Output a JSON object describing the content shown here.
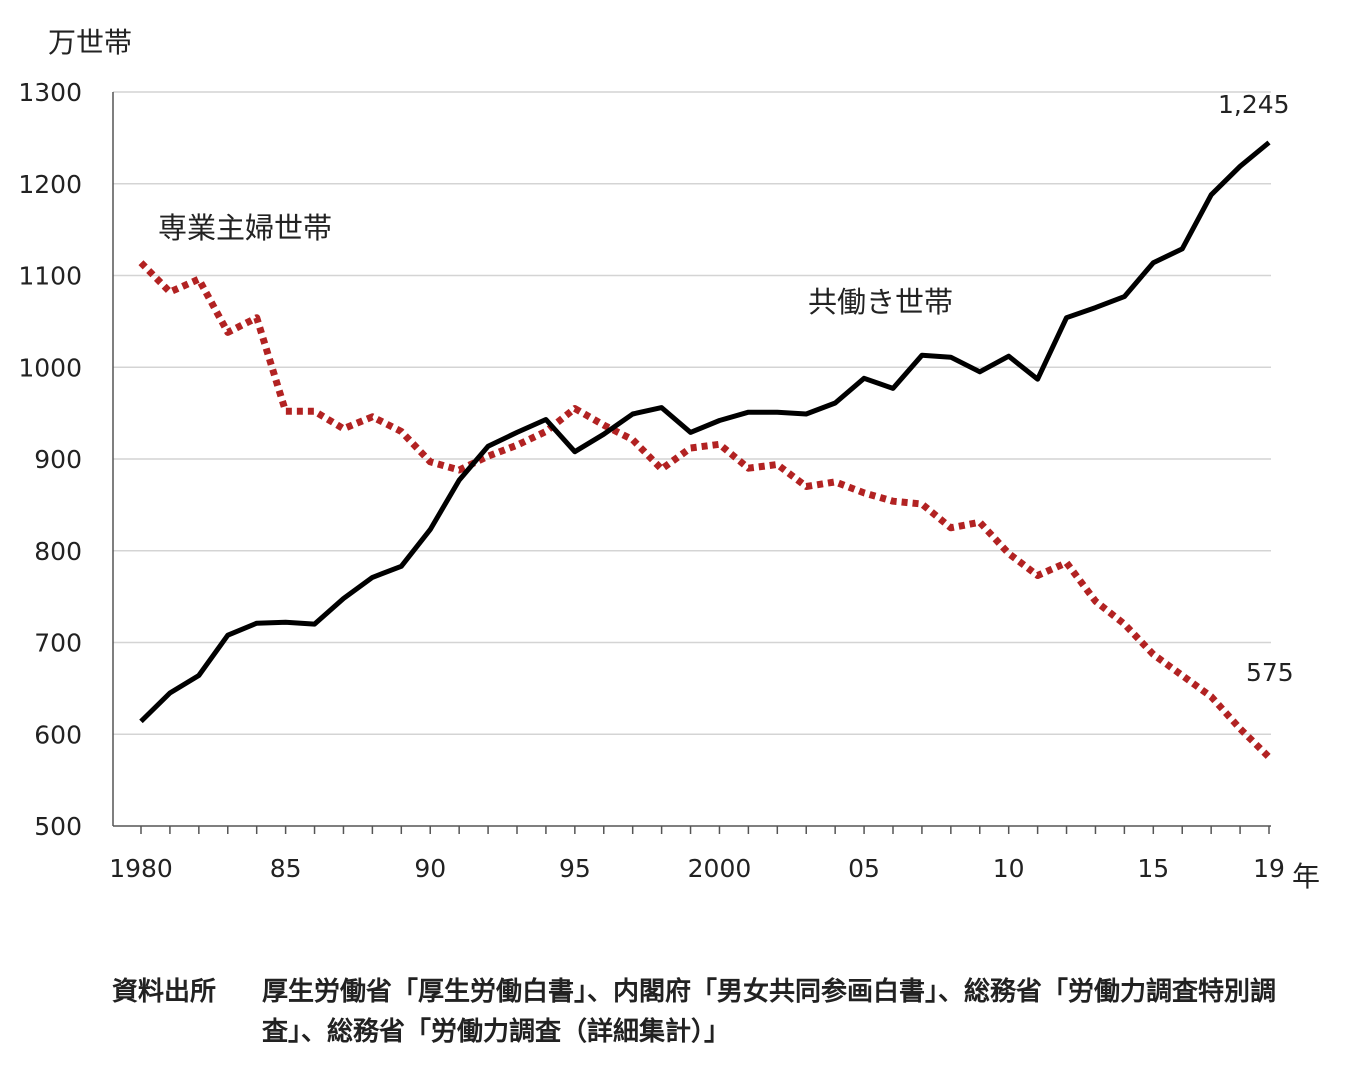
{
  "chart_data": {
    "type": "line",
    "y_unit": "万世帯",
    "x_unit": "年",
    "ylim": [
      500,
      1300
    ],
    "yticks": [
      500,
      600,
      700,
      800,
      900,
      1000,
      1100,
      1200,
      1300
    ],
    "xlim": [
      1980,
      2019
    ],
    "xtick_labels": [
      {
        "x": 1980,
        "label": "1980"
      },
      {
        "x": 1985,
        "label": "85"
      },
      {
        "x": 1990,
        "label": "90"
      },
      {
        "x": 1995,
        "label": "95"
      },
      {
        "x": 2000,
        "label": "2000"
      },
      {
        "x": 2005,
        "label": "05"
      },
      {
        "x": 2010,
        "label": "10"
      },
      {
        "x": 2015,
        "label": "15"
      },
      {
        "x": 2019,
        "label": "19"
      }
    ],
    "grid": true,
    "x": [
      1980,
      1981,
      1982,
      1983,
      1984,
      1985,
      1986,
      1987,
      1988,
      1989,
      1990,
      1991,
      1992,
      1993,
      1994,
      1995,
      1996,
      1997,
      1998,
      1999,
      2000,
      2001,
      2002,
      2003,
      2004,
      2005,
      2006,
      2007,
      2008,
      2009,
      2010,
      2011,
      2012,
      2013,
      2014,
      2015,
      2016,
      2017,
      2018,
      2019
    ],
    "series": [
      {
        "name": "専業主婦世帯",
        "style": "dotted",
        "color": "#b22222",
        "values": [
          1114,
          1082,
          1096,
          1038,
          1054,
          952,
          952,
          933,
          946,
          930,
          897,
          888,
          903,
          915,
          930,
          955,
          937,
          921,
          889,
          912,
          916,
          890,
          894,
          870,
          875,
          863,
          854,
          851,
          825,
          831,
          797,
          773,
          787,
          745,
          720,
          687,
          664,
          641,
          606,
          575
        ],
        "end_label": "575"
      },
      {
        "name": "共働き世帯",
        "style": "solid",
        "color": "#000000",
        "values": [
          614,
          645,
          664,
          708,
          721,
          722,
          720,
          748,
          771,
          783,
          823,
          877,
          914,
          929,
          943,
          908,
          927,
          949,
          956,
          929,
          942,
          951,
          951,
          949,
          961,
          988,
          977,
          1013,
          1011,
          995,
          1012,
          987,
          1054,
          1065,
          1077,
          1114,
          1129,
          1188,
          1219,
          1245
        ],
        "end_label": "1,245"
      }
    ]
  },
  "source": {
    "label": "資料出所",
    "text": "厚生労働省「厚生労働白書」、内閣府「男女共同参画白書」、総務省「労働力調査特別調査」、総務省「労働力調査（詳細集計）」"
  }
}
